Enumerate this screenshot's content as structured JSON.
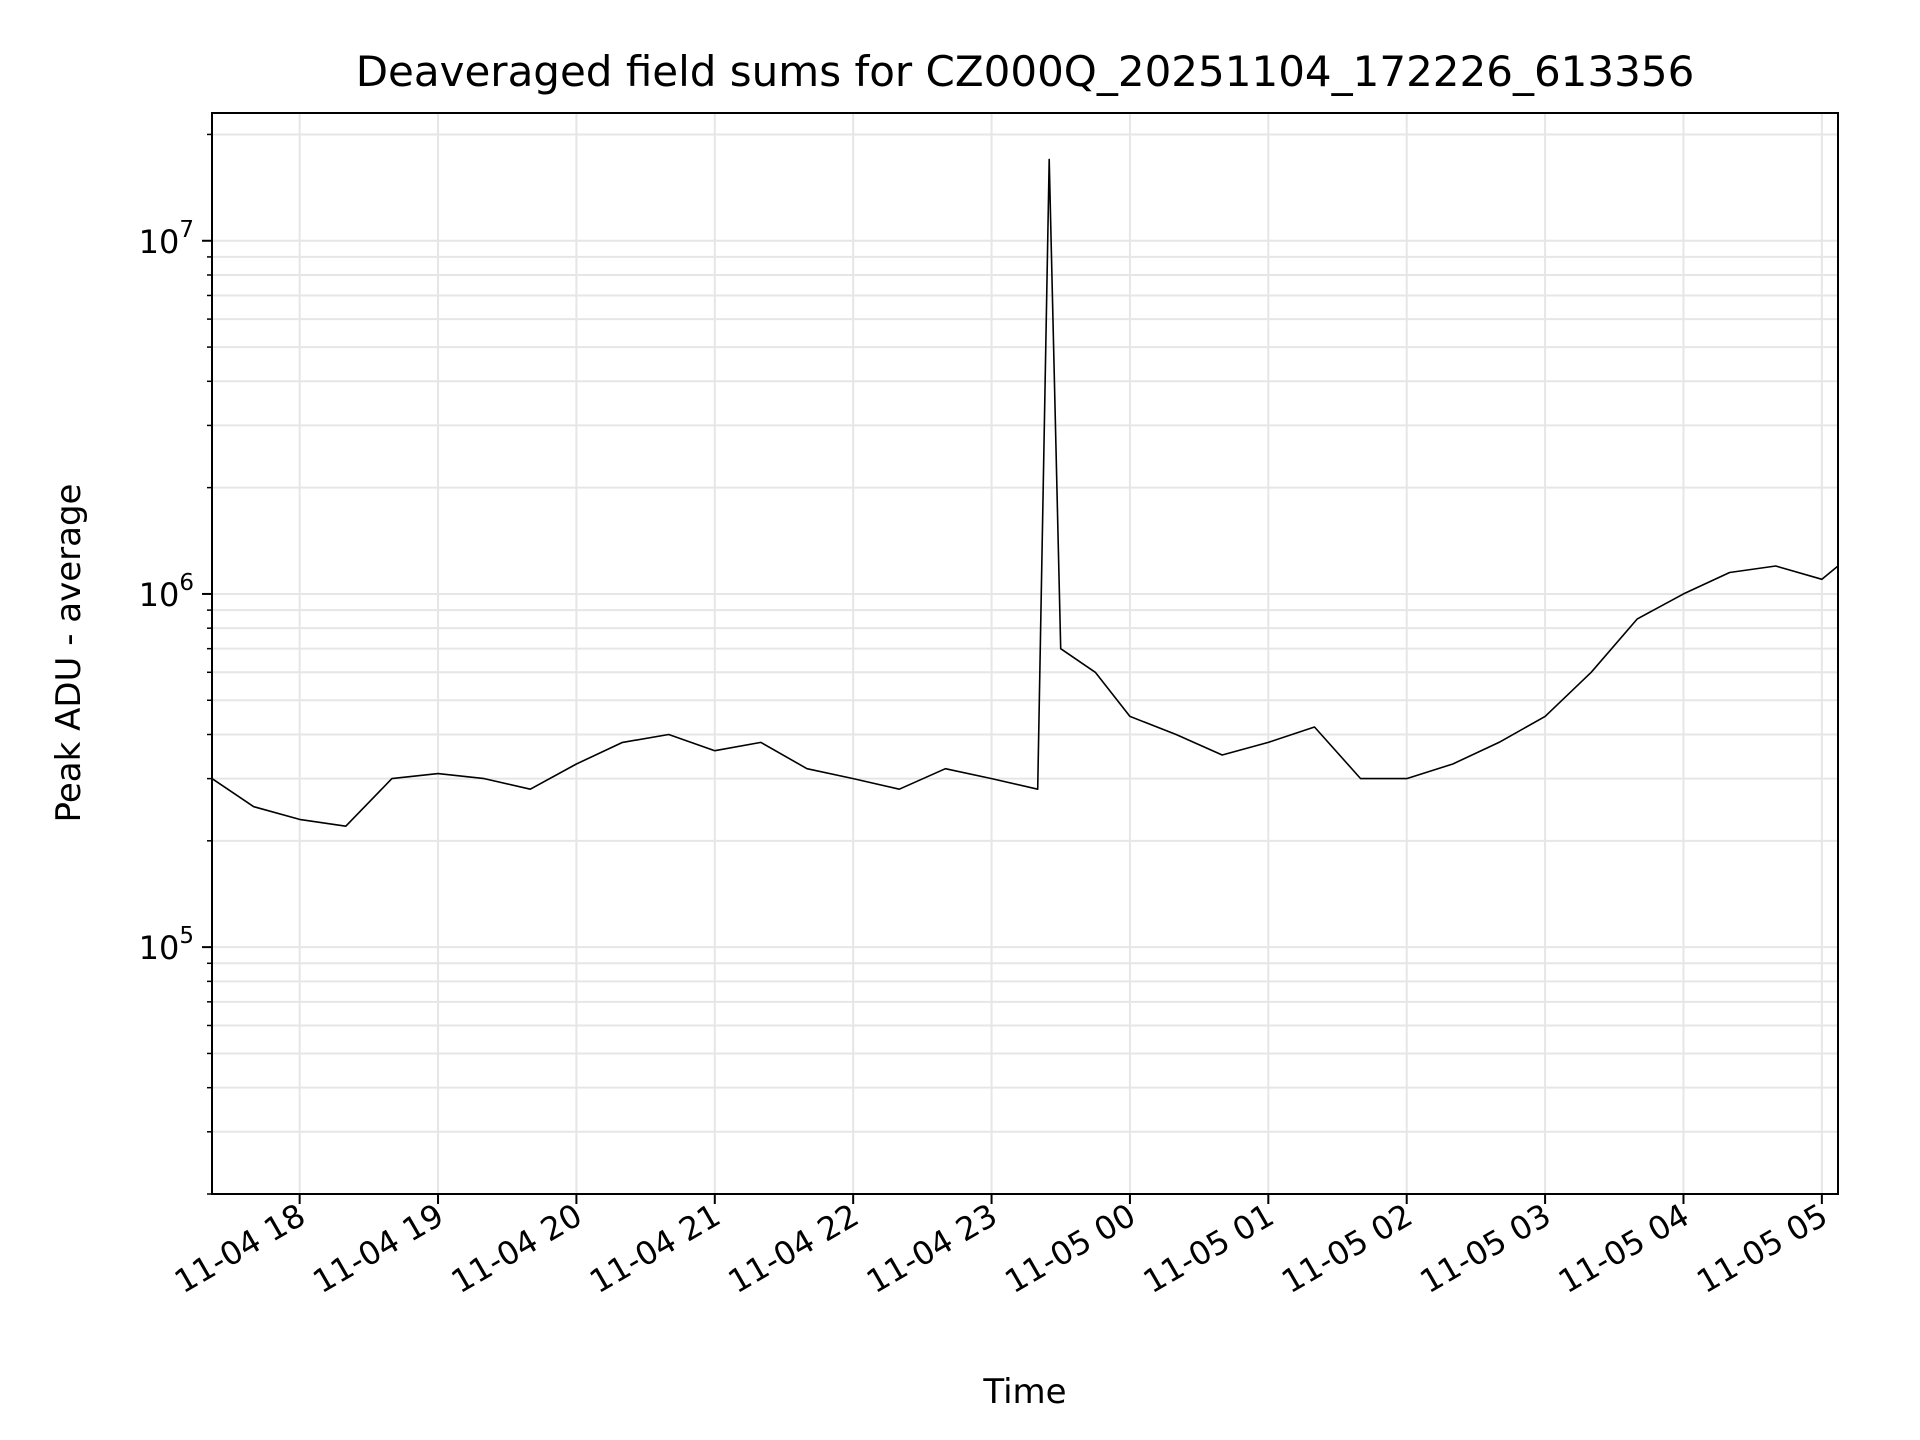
{
  "chart_data": {
    "type": "line",
    "title": "Deaveraged field sums for CZ000Q_20251104_172226_613356",
    "xlabel": "Time",
    "ylabel": "Peak ADU - average",
    "yscale": "log",
    "ylim": [
      20000,
      23000000
    ],
    "xlim": [
      "2025-11-04 17:22",
      "2025-11-05 05:07"
    ],
    "grid": true,
    "line_color": "#000000",
    "x_ticks": [
      "11-04 18",
      "11-04 19",
      "11-04 20",
      "11-04 21",
      "11-04 22",
      "11-04 23",
      "11-05 00",
      "11-05 01",
      "11-05 02",
      "11-05 03",
      "11-05 04",
      "11-05 05"
    ],
    "y_ticks": [
      {
        "base": "10",
        "exp": "5",
        "value": 100000
      },
      {
        "base": "10",
        "exp": "6",
        "value": 1000000
      },
      {
        "base": "10",
        "exp": "7",
        "value": 10000000
      }
    ],
    "series": [
      {
        "values": [
          {
            "x": "2025-11-04 17:22",
            "y": 300000
          },
          {
            "x": "2025-11-04 17:40",
            "y": 250000
          },
          {
            "x": "2025-11-04 18:00",
            "y": 230000
          },
          {
            "x": "2025-11-04 18:20",
            "y": 220000
          },
          {
            "x": "2025-11-04 18:40",
            "y": 300000
          },
          {
            "x": "2025-11-04 19:00",
            "y": 310000
          },
          {
            "x": "2025-11-04 19:20",
            "y": 300000
          },
          {
            "x": "2025-11-04 19:40",
            "y": 280000
          },
          {
            "x": "2025-11-04 20:00",
            "y": 330000
          },
          {
            "x": "2025-11-04 20:20",
            "y": 380000
          },
          {
            "x": "2025-11-04 20:40",
            "y": 400000
          },
          {
            "x": "2025-11-04 21:00",
            "y": 360000
          },
          {
            "x": "2025-11-04 21:20",
            "y": 380000
          },
          {
            "x": "2025-11-04 21:40",
            "y": 320000
          },
          {
            "x": "2025-11-04 22:00",
            "y": 300000
          },
          {
            "x": "2025-11-04 22:20",
            "y": 280000
          },
          {
            "x": "2025-11-04 22:40",
            "y": 320000
          },
          {
            "x": "2025-11-04 23:00",
            "y": 300000
          },
          {
            "x": "2025-11-04 23:20",
            "y": 280000
          },
          {
            "x": "2025-11-04 23:25",
            "y": 17000000
          },
          {
            "x": "2025-11-04 23:30",
            "y": 700000
          },
          {
            "x": "2025-11-04 23:45",
            "y": 600000
          },
          {
            "x": "2025-11-05 00:00",
            "y": 450000
          },
          {
            "x": "2025-11-05 00:20",
            "y": 400000
          },
          {
            "x": "2025-11-05 00:40",
            "y": 350000
          },
          {
            "x": "2025-11-05 01:00",
            "y": 380000
          },
          {
            "x": "2025-11-05 01:20",
            "y": 420000
          },
          {
            "x": "2025-11-05 01:40",
            "y": 300000
          },
          {
            "x": "2025-11-05 02:00",
            "y": 300000
          },
          {
            "x": "2025-11-05 02:20",
            "y": 330000
          },
          {
            "x": "2025-11-05 02:40",
            "y": 380000
          },
          {
            "x": "2025-11-05 03:00",
            "y": 450000
          },
          {
            "x": "2025-11-05 03:20",
            "y": 600000
          },
          {
            "x": "2025-11-05 03:40",
            "y": 850000
          },
          {
            "x": "2025-11-05 04:00",
            "y": 1000000
          },
          {
            "x": "2025-11-05 04:20",
            "y": 1150000
          },
          {
            "x": "2025-11-05 04:40",
            "y": 1200000
          },
          {
            "x": "2025-11-05 05:00",
            "y": 1100000
          },
          {
            "x": "2025-11-05 05:07",
            "y": 1200000
          }
        ]
      }
    ]
  }
}
